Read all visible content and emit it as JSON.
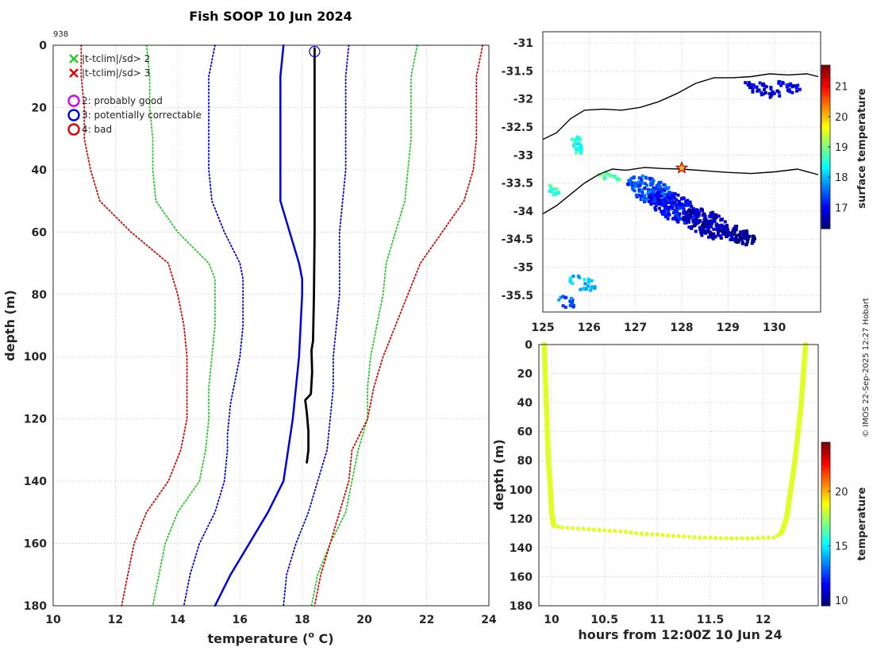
{
  "profile_number": "938",
  "credit": "© IMOS 22-Sep-2025 12:27 Hobart",
  "chart_data": [
    {
      "type": "line",
      "title": "Fish SOOP 10 Jun 2024",
      "xlabel": "temperature (",
      "xlabel_sup": "o",
      "xlabel_end": " C)",
      "ylabel": "depth (m)",
      "xlim": [
        10,
        24
      ],
      "ylim": [
        180,
        0
      ],
      "xticks": [
        10,
        12,
        14,
        16,
        18,
        20,
        22,
        24
      ],
      "yticks": [
        0,
        20,
        40,
        60,
        80,
        100,
        120,
        140,
        160,
        180
      ],
      "legend": [
        {
          "label": "|t-tclim|/sd> 2",
          "marker": "x",
          "color": "#22cc22"
        },
        {
          "label": "|t-tclim|/sd> 3",
          "marker": "x",
          "color": "#e00000"
        },
        {
          "label": "2: probably good",
          "marker": "o",
          "color": "#e000e0"
        },
        {
          "label": "3: potentially correctable",
          "marker": "o",
          "color": "#0000e0"
        },
        {
          "label": "4: bad",
          "marker": "o",
          "color": "#e00000"
        }
      ],
      "qc_flag_marker": {
        "temperature": 18.4,
        "depth": 1,
        "color": "#0000e0"
      },
      "series": [
        {
          "name": "mean",
          "color": "#0000e0",
          "style": "solid",
          "width": 2.5,
          "points": [
            [
              17.4,
              0
            ],
            [
              17.3,
              10
            ],
            [
              17.3,
              20
            ],
            [
              17.3,
              30
            ],
            [
              17.3,
              40
            ],
            [
              17.3,
              50
            ],
            [
              17.6,
              60
            ],
            [
              17.9,
              70
            ],
            [
              18.0,
              75
            ],
            [
              18.0,
              80
            ],
            [
              17.9,
              100
            ],
            [
              17.7,
              120
            ],
            [
              17.4,
              140
            ],
            [
              16.9,
              150
            ],
            [
              16.3,
              160
            ],
            [
              15.7,
              170
            ],
            [
              15.2,
              180
            ]
          ]
        },
        {
          "name": "-1sd",
          "color": "#0000e0",
          "style": "dotted",
          "width": 1.8,
          "points": [
            [
              15.2,
              0
            ],
            [
              15.0,
              10
            ],
            [
              15.0,
              20
            ],
            [
              15.0,
              30
            ],
            [
              15.0,
              40
            ],
            [
              15.1,
              50
            ],
            [
              15.5,
              60
            ],
            [
              16.0,
              70
            ],
            [
              16.1,
              75
            ],
            [
              16.1,
              90
            ],
            [
              16.0,
              100
            ],
            [
              15.7,
              115
            ],
            [
              15.6,
              125
            ],
            [
              15.6,
              130
            ],
            [
              15.5,
              140
            ],
            [
              15.2,
              150
            ],
            [
              14.7,
              160
            ],
            [
              14.4,
              170
            ],
            [
              14.2,
              180
            ]
          ]
        },
        {
          "name": "+1sd",
          "color": "#0000e0",
          "style": "dotted",
          "width": 1.8,
          "points": [
            [
              19.5,
              0
            ],
            [
              19.4,
              10
            ],
            [
              19.4,
              20
            ],
            [
              19.4,
              30
            ],
            [
              19.4,
              40
            ],
            [
              19.3,
              50
            ],
            [
              19.2,
              60
            ],
            [
              19.2,
              70
            ],
            [
              19.2,
              80
            ],
            [
              19.1,
              90
            ],
            [
              19.0,
              100
            ],
            [
              19.0,
              110
            ],
            [
              18.9,
              120
            ],
            [
              18.8,
              130
            ],
            [
              18.5,
              140
            ],
            [
              18.2,
              150
            ],
            [
              17.8,
              160
            ],
            [
              17.5,
              170
            ],
            [
              17.4,
              180
            ]
          ]
        },
        {
          "name": "-2sd",
          "color": "#22cc22",
          "style": "dotted",
          "width": 1.8,
          "points": [
            [
              13.0,
              0
            ],
            [
              13.1,
              10
            ],
            [
              13.1,
              20
            ],
            [
              13.2,
              30
            ],
            [
              13.2,
              40
            ],
            [
              13.3,
              50
            ],
            [
              14.0,
              60
            ],
            [
              15.0,
              70
            ],
            [
              15.2,
              75
            ],
            [
              15.2,
              90
            ],
            [
              15.1,
              100
            ],
            [
              15.0,
              110
            ],
            [
              15.0,
              120
            ],
            [
              14.9,
              130
            ],
            [
              14.7,
              140
            ],
            [
              14.0,
              150
            ],
            [
              13.6,
              160
            ],
            [
              13.4,
              170
            ],
            [
              13.2,
              180
            ]
          ]
        },
        {
          "name": "+2sd",
          "color": "#22cc22",
          "style": "dotted",
          "width": 1.8,
          "points": [
            [
              21.7,
              0
            ],
            [
              21.5,
              10
            ],
            [
              21.5,
              20
            ],
            [
              21.5,
              30
            ],
            [
              21.4,
              40
            ],
            [
              21.3,
              50
            ],
            [
              21.0,
              60
            ],
            [
              20.7,
              70
            ],
            [
              20.6,
              80
            ],
            [
              20.4,
              90
            ],
            [
              20.2,
              100
            ],
            [
              20.1,
              110
            ],
            [
              20.1,
              120
            ],
            [
              19.8,
              130
            ],
            [
              19.6,
              140
            ],
            [
              19.4,
              150
            ],
            [
              18.9,
              160
            ],
            [
              18.5,
              170
            ],
            [
              18.3,
              180
            ]
          ]
        },
        {
          "name": "-3sd",
          "color": "#e00000",
          "style": "dotted",
          "width": 1.8,
          "points": [
            [
              10.9,
              0
            ],
            [
              10.9,
              10
            ],
            [
              11.0,
              20
            ],
            [
              11.0,
              30
            ],
            [
              11.2,
              40
            ],
            [
              11.5,
              50
            ],
            [
              12.5,
              60
            ],
            [
              13.7,
              70
            ],
            [
              14.0,
              80
            ],
            [
              14.2,
              90
            ],
            [
              14.3,
              100
            ],
            [
              14.3,
              110
            ],
            [
              14.3,
              120
            ],
            [
              14.1,
              130
            ],
            [
              13.7,
              140
            ],
            [
              13.0,
              150
            ],
            [
              12.6,
              160
            ],
            [
              12.4,
              170
            ],
            [
              12.2,
              180
            ]
          ]
        },
        {
          "name": "+3sd",
          "color": "#e00000",
          "style": "dotted",
          "width": 1.8,
          "points": [
            [
              23.8,
              0
            ],
            [
              23.6,
              10
            ],
            [
              23.6,
              20
            ],
            [
              23.6,
              30
            ],
            [
              23.5,
              40
            ],
            [
              23.2,
              50
            ],
            [
              22.5,
              60
            ],
            [
              21.8,
              70
            ],
            [
              21.4,
              80
            ],
            [
              21.0,
              90
            ],
            [
              20.6,
              100
            ],
            [
              20.3,
              110
            ],
            [
              20.1,
              120
            ],
            [
              19.6,
              130
            ],
            [
              19.5,
              140
            ],
            [
              19.2,
              150
            ],
            [
              18.9,
              160
            ],
            [
              18.6,
              170
            ],
            [
              18.4,
              180
            ]
          ]
        },
        {
          "name": "profile",
          "color": "#000000",
          "style": "solid",
          "width": 2.8,
          "points": [
            [
              18.4,
              1
            ],
            [
              18.4,
              20
            ],
            [
              18.4,
              37
            ],
            [
              18.4,
              60
            ],
            [
              18.38,
              80
            ],
            [
              18.35,
              95
            ],
            [
              18.3,
              98
            ],
            [
              18.32,
              105
            ],
            [
              18.28,
              112
            ],
            [
              18.1,
              114
            ],
            [
              18.15,
              118
            ],
            [
              18.2,
              124
            ],
            [
              18.2,
              130
            ],
            [
              18.15,
              134
            ]
          ]
        }
      ]
    },
    {
      "type": "heatmap",
      "xlim": [
        125,
        131
      ],
      "ylim": [
        -35.8,
        -30.8
      ],
      "xticks": [
        125,
        126,
        127,
        128,
        129,
        130
      ],
      "yticks": [
        -31,
        -31.5,
        -32,
        -32.5,
        -33,
        -33.5,
        -34,
        -34.5,
        -35,
        -35.5
      ],
      "colorbar": {
        "label": "surface temperature",
        "range": [
          16.3,
          21.7
        ],
        "ticks": [
          17,
          18,
          19,
          20,
          21
        ]
      },
      "coastlines": [
        [
          [
            125,
            -32.72
          ],
          [
            125.3,
            -32.6
          ],
          [
            125.6,
            -32.35
          ],
          [
            125.9,
            -32.2
          ],
          [
            126.3,
            -32.18
          ],
          [
            126.7,
            -32.2
          ],
          [
            127.1,
            -32.15
          ],
          [
            127.5,
            -32.05
          ],
          [
            127.9,
            -31.9
          ],
          [
            128.3,
            -31.72
          ],
          [
            128.7,
            -31.62
          ],
          [
            129.1,
            -31.62
          ],
          [
            129.5,
            -31.6
          ],
          [
            129.9,
            -31.55
          ],
          [
            130.3,
            -31.57
          ],
          [
            130.7,
            -31.55
          ],
          [
            130.95,
            -31.6
          ]
        ],
        [
          [
            125,
            -34.05
          ],
          [
            125.3,
            -33.9
          ],
          [
            125.6,
            -33.7
          ],
          [
            125.9,
            -33.5
          ],
          [
            126.2,
            -33.35
          ],
          [
            126.5,
            -33.25
          ],
          [
            126.8,
            -33.27
          ],
          [
            127.2,
            -33.22
          ],
          [
            127.6,
            -33.24
          ],
          [
            128.0,
            -33.25
          ],
          [
            128.5,
            -33.28
          ],
          [
            129.0,
            -33.31
          ],
          [
            129.5,
            -33.33
          ],
          [
            130.0,
            -33.3
          ],
          [
            130.5,
            -33.25
          ],
          [
            130.95,
            -33.35
          ]
        ]
      ],
      "ship_marker": {
        "lon": 128.0,
        "lat": -33.23
      },
      "patches": [
        {
          "lon": 129.7,
          "lat": -31.8,
          "rx": 0.4,
          "ry": 0.12,
          "temp": 16.8,
          "n": 40
        },
        {
          "lon": 130.3,
          "lat": -31.75,
          "rx": 0.25,
          "ry": 0.1,
          "temp": 16.9,
          "n": 25
        },
        {
          "lon": 125.7,
          "lat": -32.8,
          "rx": 0.12,
          "ry": 0.18,
          "temp": 18.5,
          "n": 25
        },
        {
          "lon": 125.2,
          "lat": -33.6,
          "rx": 0.15,
          "ry": 0.08,
          "temp": 18.6,
          "n": 15
        },
        {
          "lon": 126.4,
          "lat": -33.35,
          "rx": 0.25,
          "ry": 0.08,
          "temp": 18.9,
          "n": 20
        },
        {
          "lon": 127.3,
          "lat": -33.6,
          "rx": 0.5,
          "ry": 0.25,
          "temp": 17.4,
          "n": 160
        },
        {
          "lon": 127.8,
          "lat": -33.9,
          "rx": 0.55,
          "ry": 0.25,
          "temp": 17.0,
          "n": 180
        },
        {
          "lon": 128.5,
          "lat": -34.2,
          "rx": 0.5,
          "ry": 0.25,
          "temp": 16.6,
          "n": 160
        },
        {
          "lon": 129.2,
          "lat": -34.4,
          "rx": 0.35,
          "ry": 0.15,
          "temp": 16.4,
          "n": 80
        },
        {
          "lon": 125.8,
          "lat": -35.25,
          "rx": 0.3,
          "ry": 0.15,
          "temp": 18.0,
          "n": 25
        },
        {
          "lon": 125.5,
          "lat": -35.6,
          "rx": 0.2,
          "ry": 0.1,
          "temp": 17.5,
          "n": 15
        }
      ]
    },
    {
      "type": "scatter",
      "xlabel": "hours from 12:00Z 10 Jun 24",
      "ylabel": "depth (m)",
      "xlim": [
        9.88,
        12.52
      ],
      "ylim": [
        180,
        0
      ],
      "xticks": [
        10,
        10.5,
        11,
        11.5,
        12
      ],
      "yticks": [
        0,
        20,
        40,
        60,
        80,
        100,
        120,
        140,
        160,
        180
      ],
      "colorbar": {
        "label": "temperature",
        "range": [
          9.5,
          24.5
        ],
        "ticks": [
          10,
          15,
          20
        ]
      },
      "marker_color_temperature": 18.4,
      "points": [
        [
          9.93,
          0
        ],
        [
          9.94,
          20
        ],
        [
          9.95,
          40
        ],
        [
          9.96,
          60
        ],
        [
          9.97,
          80
        ],
        [
          9.99,
          100
        ],
        [
          10.0,
          115
        ],
        [
          10.02,
          125
        ],
        [
          10.1,
          126
        ],
        [
          10.2,
          126.5
        ],
        [
          10.3,
          127
        ],
        [
          10.4,
          127.5
        ],
        [
          10.5,
          128
        ],
        [
          10.6,
          128.5
        ],
        [
          10.7,
          129
        ],
        [
          10.8,
          130
        ],
        [
          10.9,
          130.5
        ],
        [
          11.0,
          131
        ],
        [
          11.1,
          131.5
        ],
        [
          11.2,
          132
        ],
        [
          11.3,
          132.5
        ],
        [
          11.4,
          133
        ],
        [
          11.5,
          133
        ],
        [
          11.6,
          133.5
        ],
        [
          11.7,
          133.5
        ],
        [
          11.8,
          133.5
        ],
        [
          11.9,
          133.5
        ],
        [
          12.0,
          133
        ],
        [
          12.1,
          133
        ],
        [
          12.17,
          130
        ],
        [
          12.22,
          120
        ],
        [
          12.26,
          100
        ],
        [
          12.3,
          80
        ],
        [
          12.33,
          60
        ],
        [
          12.36,
          40
        ],
        [
          12.38,
          20
        ],
        [
          12.4,
          0
        ]
      ]
    }
  ]
}
